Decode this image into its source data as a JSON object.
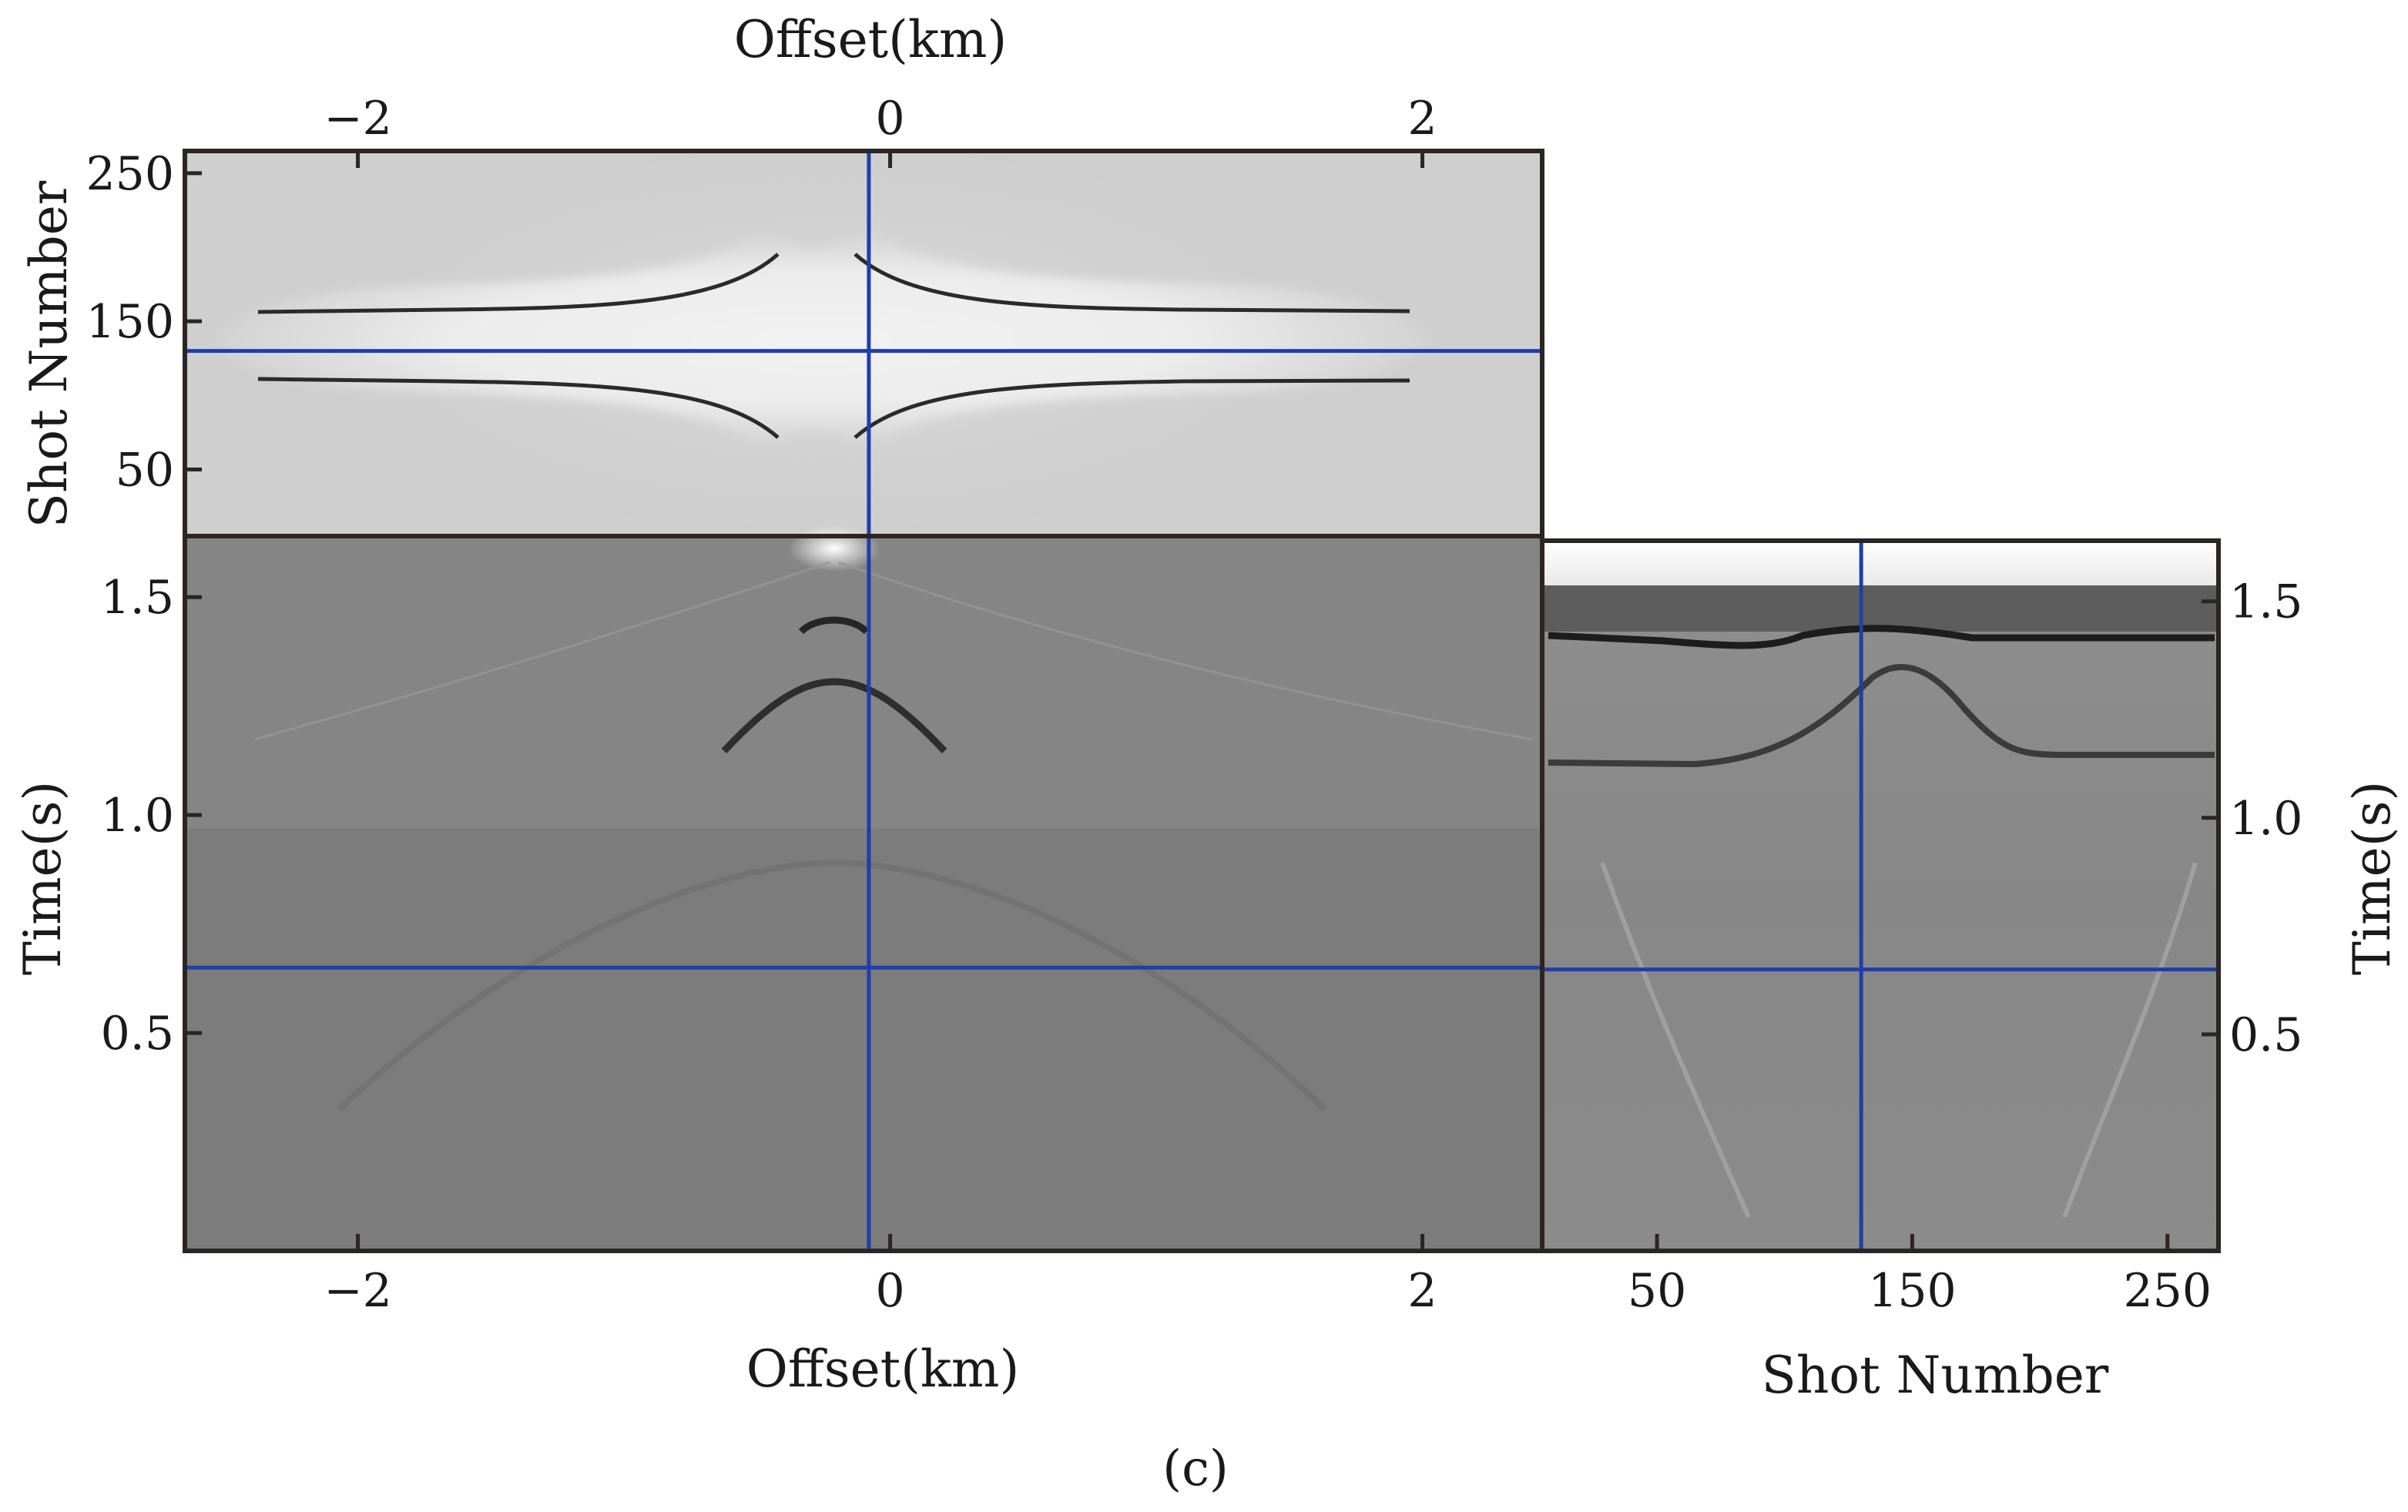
{
  "figure": {
    "caption": "(c)"
  },
  "chart_data": [
    {
      "type": "heatmap",
      "panel": "top",
      "description_role": "time slice",
      "xlabel": "Offset(km)",
      "xlabel_position": "top",
      "ylabel": "Shot Number",
      "xlim": [
        -2.65,
        2.45
      ],
      "ylim": [
        265,
        5
      ],
      "xticks": [
        -2,
        0,
        2
      ],
      "xtick_labels": [
        "−2",
        "0",
        "2"
      ],
      "yticks": [
        50,
        150,
        250
      ],
      "ytick_labels": [
        "50",
        "150",
        "250"
      ],
      "crosshair": {
        "offset_km": -0.08,
        "shot": 130,
        "color": "#1f3fa8"
      }
    },
    {
      "type": "heatmap",
      "panel": "bottom-left",
      "description_role": "common shot gather",
      "xlabel": "Offset(km)",
      "ylabel": "Time(s)",
      "xlim": [
        -2.65,
        2.45
      ],
      "ylim": [
        1.64,
        0.0
      ],
      "xticks": [
        -2,
        0,
        2
      ],
      "xtick_labels": [
        "−2",
        "0",
        "2"
      ],
      "yticks": [
        0.5,
        1.0,
        1.5
      ],
      "ytick_labels": [
        "0.5",
        "1.0",
        "1.5"
      ],
      "crosshair": {
        "offset_km": -0.08,
        "time_s": 0.65,
        "color": "#1f3fa8"
      }
    },
    {
      "type": "heatmap",
      "panel": "bottom-right",
      "description_role": "common offset gather",
      "xlabel": "Shot Number",
      "ylabel": "Time(s)",
      "ylabel_position": "right",
      "xlim": [
        5,
        270
      ],
      "ylim": [
        1.64,
        0.0
      ],
      "xticks": [
        50,
        150,
        250
      ],
      "xtick_labels": [
        "50",
        "150",
        "250"
      ],
      "yticks": [
        0.5,
        1.0,
        1.5
      ],
      "ytick_labels": [
        "0.5",
        "1.0",
        "1.5"
      ],
      "crosshair": {
        "shot": 130,
        "time_s": 0.65,
        "color": "#1f3fa8"
      }
    }
  ]
}
